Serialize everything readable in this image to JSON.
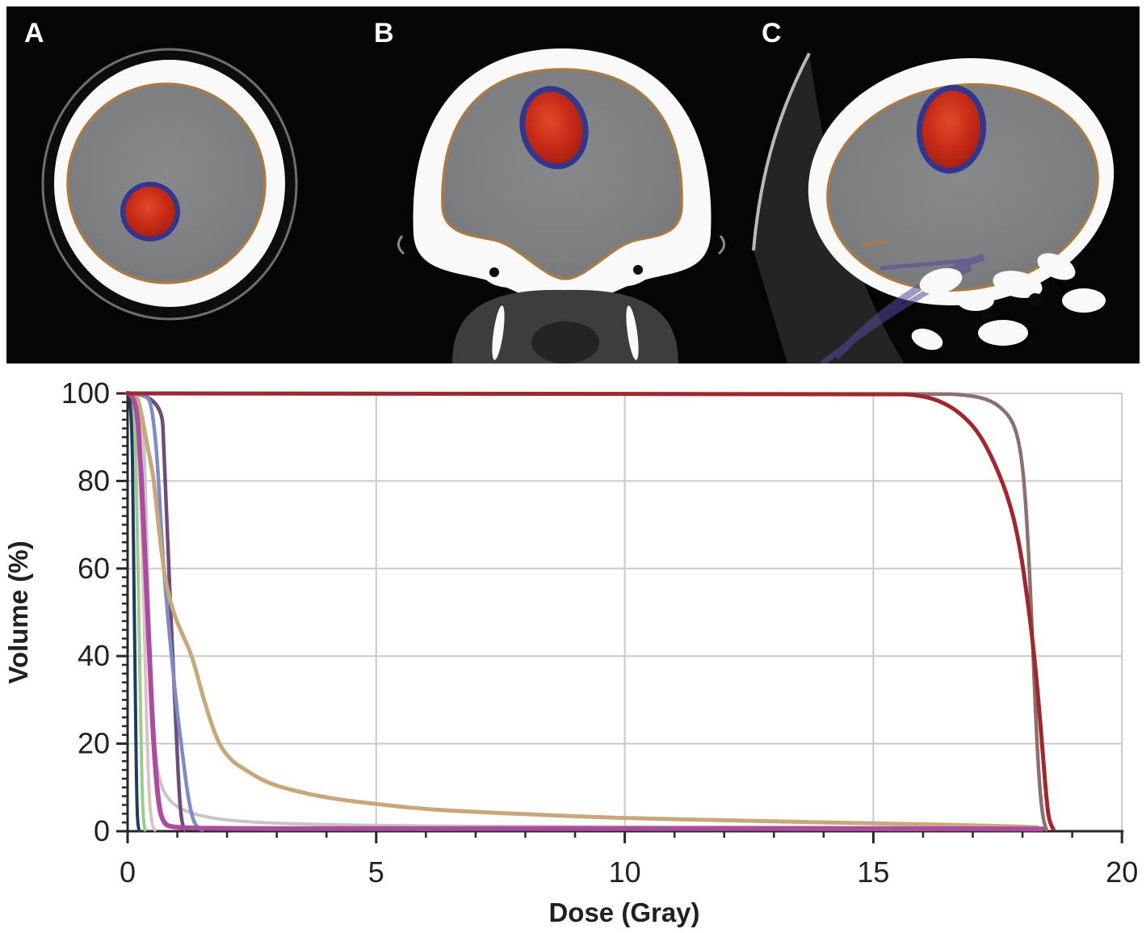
{
  "figure": {
    "panels": [
      {
        "label": "A",
        "view": "axial-ct-slice-with-target-contour"
      },
      {
        "label": "B",
        "view": "coronal-ct-slice-with-target-contour"
      },
      {
        "label": "C",
        "view": "sagittal-ct-slice-with-target-contour"
      }
    ],
    "colors": {
      "background": "#050505",
      "bone_white": "#f9f9f9",
      "brain_gray": "#7e8083",
      "brain_contour_orange": "#a87a45",
      "target_fill_red": "#c5281c",
      "target_rim_blue": "#33368f",
      "pathway_contour_purple": "#544a9b"
    }
  },
  "chart_data": {
    "type": "line",
    "title": "",
    "xlabel": "Dose (Gray)",
    "ylabel": "Volume (%)",
    "xlim": [
      0,
      20
    ],
    "ylim": [
      0,
      100
    ],
    "x_ticks": [
      0,
      5,
      10,
      15,
      20
    ],
    "y_ticks": [
      0,
      20,
      40,
      60,
      80,
      100
    ],
    "x_minor_step": 1,
    "y_minor_step": 2,
    "grid": true,
    "grid_x": [
      5,
      10,
      15,
      20
    ],
    "grid_y": [
      20,
      40,
      60,
      80,
      100
    ],
    "legend_position": "none",
    "axis_color": "#2b2728",
    "grid_color": "#c9c9c9",
    "label_color": "#231f20",
    "series": [
      {
        "name": "light-gray-curve",
        "color": "#c6c4c5",
        "width": 4,
        "points": [
          [
            0,
            100
          ],
          [
            0.3,
            100
          ],
          [
            0.38,
            70
          ],
          [
            0.45,
            40
          ],
          [
            0.55,
            18
          ],
          [
            0.65,
            11
          ],
          [
            0.8,
            7.5
          ],
          [
            1.0,
            5.5
          ],
          [
            1.3,
            4
          ],
          [
            1.7,
            3
          ],
          [
            2.2,
            2.3
          ],
          [
            3,
            1.8
          ],
          [
            4,
            1.5
          ],
          [
            5,
            1.3
          ],
          [
            7,
            1.1
          ],
          [
            10,
            1.0
          ],
          [
            13,
            0.9
          ],
          [
            16,
            0.85
          ],
          [
            18.2,
            0.8
          ]
        ]
      },
      {
        "name": "light-pink-curve",
        "color": "#dcc3c3",
        "width": 4,
        "points": [
          [
            0,
            100
          ],
          [
            0.2,
            100
          ],
          [
            0.27,
            75
          ],
          [
            0.33,
            50
          ],
          [
            0.39,
            22
          ],
          [
            0.44,
            6
          ],
          [
            0.5,
            1
          ],
          [
            0.55,
            0.3
          ]
        ]
      },
      {
        "name": "light-green-curve",
        "color": "#9ccb8e",
        "width": 4,
        "points": [
          [
            0,
            100
          ],
          [
            0.14,
            100
          ],
          [
            0.19,
            72
          ],
          [
            0.24,
            42
          ],
          [
            0.28,
            15
          ],
          [
            0.31,
            3
          ],
          [
            0.35,
            0.3
          ]
        ]
      },
      {
        "name": "navy-curve",
        "color": "#1f3d5a",
        "width": 4,
        "points": [
          [
            0,
            100
          ],
          [
            0.08,
            100
          ],
          [
            0.12,
            65
          ],
          [
            0.15,
            35
          ],
          [
            0.18,
            10
          ],
          [
            0.2,
            2
          ],
          [
            0.23,
            0.2
          ]
        ]
      },
      {
        "name": "plum-curve",
        "color": "#6f4b77",
        "width": 4.5,
        "points": [
          [
            0,
            100
          ],
          [
            0.68,
            100
          ],
          [
            0.74,
            85
          ],
          [
            0.82,
            62
          ],
          [
            0.9,
            42
          ],
          [
            0.98,
            22
          ],
          [
            1.04,
            8
          ],
          [
            1.09,
            2
          ],
          [
            1.15,
            0.3
          ]
        ]
      },
      {
        "name": "periwinkle-curve",
        "color": "#7f8ac8",
        "width": 4.5,
        "points": [
          [
            0,
            100
          ],
          [
            0.4,
            100
          ],
          [
            0.5,
            96
          ],
          [
            0.6,
            85
          ],
          [
            0.7,
            64
          ],
          [
            0.8,
            50
          ],
          [
            0.9,
            38
          ],
          [
            1.0,
            27
          ],
          [
            1.1,
            18
          ],
          [
            1.2,
            9
          ],
          [
            1.3,
            3
          ],
          [
            1.4,
            0.8
          ],
          [
            1.5,
            0.3
          ]
        ]
      },
      {
        "name": "tan-curve",
        "color": "#c7a87a",
        "width": 5,
        "points": [
          [
            0,
            100
          ],
          [
            0.17,
            100
          ],
          [
            0.25,
            97
          ],
          [
            0.35,
            91
          ],
          [
            0.45,
            85
          ],
          [
            0.52,
            81
          ],
          [
            0.6,
            72
          ],
          [
            0.7,
            62
          ],
          [
            0.8,
            55
          ],
          [
            0.95,
            49
          ],
          [
            1.1,
            45
          ],
          [
            1.3,
            40
          ],
          [
            1.53,
            30
          ],
          [
            1.82,
            20
          ],
          [
            2.1,
            16
          ],
          [
            2.3,
            14.5
          ],
          [
            2.8,
            11
          ],
          [
            3.5,
            8.8
          ],
          [
            4.2,
            7.3
          ],
          [
            5,
            6.2
          ],
          [
            6,
            5
          ],
          [
            7,
            4.4
          ],
          [
            8,
            3.9
          ],
          [
            9,
            3.4
          ],
          [
            10,
            3
          ],
          [
            12,
            2.5
          ],
          [
            14,
            2
          ],
          [
            16,
            1.6
          ],
          [
            17.5,
            1.2
          ],
          [
            18.3,
            0.9
          ]
        ]
      },
      {
        "name": "magenta-curve",
        "color": "#ad4ba0",
        "width": 6,
        "points": [
          [
            0,
            100
          ],
          [
            0.18,
            100
          ],
          [
            0.28,
            80
          ],
          [
            0.36,
            60
          ],
          [
            0.44,
            40
          ],
          [
            0.52,
            20
          ],
          [
            0.62,
            6
          ],
          [
            0.72,
            1.8
          ],
          [
            0.9,
            0.8
          ],
          [
            2,
            0.6
          ],
          [
            5,
            0.6
          ],
          [
            10,
            0.6
          ],
          [
            15,
            0.6
          ],
          [
            18.4,
            0.5
          ]
        ]
      },
      {
        "name": "taupe-curve",
        "color": "#8c7070",
        "width": 4.5,
        "points": [
          [
            0,
            100
          ],
          [
            16.3,
            100
          ],
          [
            16.8,
            99.7
          ],
          [
            17.2,
            99
          ],
          [
            17.5,
            97.5
          ],
          [
            17.8,
            94
          ],
          [
            17.95,
            88
          ],
          [
            18.05,
            78
          ],
          [
            18.15,
            58
          ],
          [
            18.22,
            38
          ],
          [
            18.3,
            18
          ],
          [
            18.36,
            8
          ],
          [
            18.42,
            2.5
          ],
          [
            18.48,
            0.4
          ]
        ]
      },
      {
        "name": "dark-red-curve",
        "color": "#a0272e",
        "width": 5,
        "points": [
          [
            0,
            100
          ],
          [
            15.4,
            100
          ],
          [
            15.9,
            99.6
          ],
          [
            16.3,
            98.5
          ],
          [
            16.7,
            96
          ],
          [
            17.1,
            91.5
          ],
          [
            17.45,
            84
          ],
          [
            17.75,
            75
          ],
          [
            17.95,
            65
          ],
          [
            18.1,
            53
          ],
          [
            18.22,
            42
          ],
          [
            18.32,
            30
          ],
          [
            18.4,
            19
          ],
          [
            18.47,
            9
          ],
          [
            18.52,
            3.5
          ],
          [
            18.57,
            1.5
          ],
          [
            18.62,
            0.5
          ]
        ]
      }
    ]
  }
}
